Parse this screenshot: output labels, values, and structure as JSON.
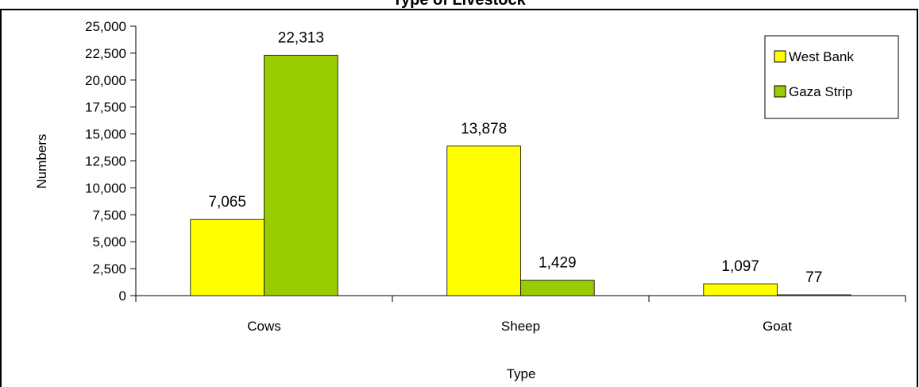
{
  "chart_data": {
    "type": "bar",
    "title": "Type of Livestock",
    "xlabel": "Type",
    "ylabel": "Numbers",
    "categories": [
      "Cows",
      "Sheep",
      "Goat"
    ],
    "series": [
      {
        "name": "West Bank",
        "values": [
          7065,
          13878,
          1097
        ],
        "labels": [
          "7,065",
          "13,878",
          "1,097"
        ],
        "color": "#FFFF00"
      },
      {
        "name": "Gaza Strip",
        "values": [
          22313,
          1429,
          77
        ],
        "labels": [
          "22,313",
          "1,429",
          "77"
        ],
        "color": "#99CC00"
      }
    ],
    "ylim": [
      0,
      25000
    ],
    "yticks": [
      0,
      2500,
      5000,
      7500,
      10000,
      12500,
      15000,
      17500,
      20000,
      22500,
      25000
    ],
    "ytick_labels": [
      "0",
      "2,500",
      "5,000",
      "7,500",
      "10,000",
      "12,500",
      "15,000",
      "17,500",
      "20,000",
      "22,500",
      "25,000"
    ],
    "grid": false,
    "legend_position": "top-right"
  }
}
